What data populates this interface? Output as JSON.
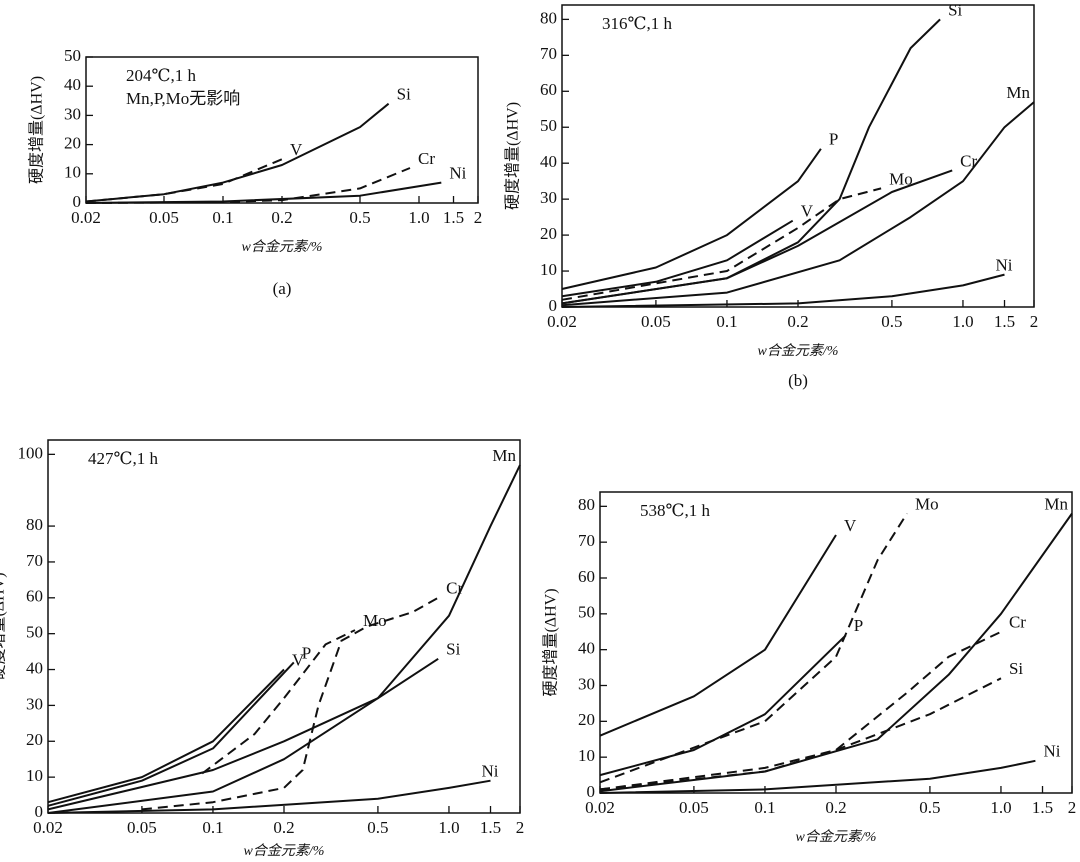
{
  "chart_data": [
    {
      "type": "line",
      "title": "204℃,1 h",
      "annotation": "Mn,P,Mo无影响",
      "panel_label": "(a)",
      "y_label": "硬度增量(ΔHV)",
      "x_label": "w合金元素/%",
      "xscale": "log",
      "xlim": [
        0.02,
        2
      ],
      "ylim": [
        0,
        50
      ],
      "xticks": [
        0.02,
        0.05,
        0.1,
        0.2,
        0.5,
        {
          "value": 1,
          "label": "1.0"
        },
        1.5,
        2
      ],
      "yticks": [
        0,
        10,
        20,
        30,
        40,
        50
      ],
      "series": [
        {
          "name": "Si",
          "color": "#111",
          "dashed": false,
          "x": [
            0.02,
            0.05,
            0.1,
            0.2,
            0.5,
            0.7
          ],
          "values": [
            0.5,
            3,
            7,
            13,
            26,
            34
          ]
        },
        {
          "name": "V",
          "color": "#111",
          "dashed": true,
          "x": [
            0.02,
            0.05,
            0.1,
            0.2
          ],
          "values": [
            0.5,
            3,
            6.5,
            15
          ]
        },
        {
          "name": "Cr",
          "color": "#111",
          "dashed": true,
          "x": [
            0.02,
            0.1,
            0.2,
            0.5,
            0.9
          ],
          "values": [
            0,
            0.3,
            1,
            5,
            12
          ]
        },
        {
          "name": "Ni",
          "color": "#111",
          "dashed": false,
          "x": [
            0.02,
            0.1,
            0.5,
            1.3
          ],
          "values": [
            0,
            0.5,
            2.5,
            7
          ]
        }
      ]
    },
    {
      "type": "line",
      "title": "316℃,1 h",
      "panel_label": "(b)",
      "y_label": "硬度增量(ΔHV)",
      "x_label": "w合金元素/%",
      "xscale": "log",
      "xlim": [
        0.02,
        2
      ],
      "ylim": [
        0,
        84
      ],
      "xticks": [
        0.02,
        0.05,
        0.1,
        0.2,
        0.5,
        {
          "value": 1,
          "label": "1.0"
        },
        1.5,
        2
      ],
      "yticks": [
        0,
        10,
        20,
        30,
        40,
        50,
        60,
        70,
        80
      ],
      "series": [
        {
          "name": "P",
          "color": "#111",
          "dashed": false,
          "x": [
            0.02,
            0.05,
            0.1,
            0.2,
            0.25
          ],
          "values": [
            5,
            11,
            20,
            35,
            44
          ]
        },
        {
          "name": "V",
          "color": "#111",
          "dashed": false,
          "x": [
            0.02,
            0.05,
            0.1,
            0.19
          ],
          "values": [
            3,
            7,
            13,
            24
          ]
        },
        {
          "name": "Mo",
          "color": "#111",
          "dashed": true,
          "x": [
            0.02,
            0.1,
            0.2,
            0.3,
            0.45
          ],
          "values": [
            2,
            10,
            22,
            30,
            33
          ]
        },
        {
          "name": "Cr",
          "color": "#111",
          "dashed": false,
          "x": [
            0.02,
            0.1,
            0.2,
            0.5,
            0.9
          ],
          "values": [
            1,
            8,
            17,
            32,
            38
          ]
        },
        {
          "name": "Si",
          "color": "#111",
          "dashed": false,
          "x": [
            0.02,
            0.1,
            0.2,
            0.3,
            0.4,
            0.6,
            0.8
          ],
          "values": [
            1,
            8,
            18,
            30,
            50,
            72,
            80
          ]
        },
        {
          "name": "Mn",
          "color": "#111",
          "dashed": false,
          "x": [
            0.02,
            0.1,
            0.3,
            0.6,
            1,
            1.5,
            2
          ],
          "values": [
            0.5,
            4,
            13,
            25,
            35,
            50,
            57
          ]
        },
        {
          "name": "Ni",
          "color": "#111",
          "dashed": false,
          "x": [
            0.02,
            0.2,
            0.5,
            1,
            1.5
          ],
          "values": [
            0,
            1,
            3,
            6,
            9
          ]
        }
      ]
    },
    {
      "type": "line",
      "title": "427℃,1 h",
      "y_label": "硬度增量(ΔHV)",
      "x_label": "w合金元素/%",
      "xscale": "log",
      "xlim": [
        0.02,
        2
      ],
      "ylim": [
        0,
        104
      ],
      "xticks": [
        0.02,
        0.05,
        0.1,
        0.2,
        0.5,
        {
          "value": 1,
          "label": "1.0"
        },
        1.5,
        2
      ],
      "yticks": [
        0,
        10,
        20,
        30,
        40,
        50,
        60,
        70,
        80,
        100
      ],
      "series": [
        {
          "name": "V",
          "color": "#111",
          "dashed": false,
          "x": [
            0.02,
            0.05,
            0.1,
            0.2
          ],
          "values": [
            3,
            10,
            20,
            40
          ]
        },
        {
          "name": "P",
          "color": "#111",
          "dashed": false,
          "x": [
            0.02,
            0.05,
            0.1,
            0.22
          ],
          "values": [
            2,
            9,
            18,
            42
          ]
        },
        {
          "name": "Mo",
          "color": "#111",
          "dashed": true,
          "x": [
            0.09,
            0.15,
            0.2,
            0.3,
            0.4
          ],
          "values": [
            11,
            22,
            32,
            47,
            51
          ]
        },
        {
          "name": "Cr",
          "color": "#111",
          "dashed": true,
          "x": [
            0.05,
            0.1,
            0.2,
            0.24,
            0.28,
            0.35,
            0.45,
            0.7,
            0.9
          ],
          "values": [
            1,
            3,
            7,
            12,
            30,
            48,
            52,
            56,
            60
          ]
        },
        {
          "name": "Si",
          "color": "#111",
          "dashed": false,
          "x": [
            0.02,
            0.1,
            0.2,
            0.5,
            0.9
          ],
          "values": [
            1,
            12,
            20,
            32,
            43
          ]
        },
        {
          "name": "Mn",
          "color": "#111",
          "dashed": false,
          "x": [
            0.02,
            0.1,
            0.2,
            0.5,
            1,
            1.5,
            2
          ],
          "values": [
            0,
            6,
            15,
            32,
            55,
            80,
            97
          ]
        },
        {
          "name": "Ni",
          "color": "#111",
          "dashed": false,
          "x": [
            0.02,
            0.1,
            0.5,
            1,
            1.5
          ],
          "values": [
            0,
            1,
            4,
            7,
            9
          ]
        }
      ]
    },
    {
      "type": "line",
      "title": "538℃,1 h",
      "y_label": "硬度增量(ΔHV)",
      "x_label": "w合金元素/%",
      "xscale": "log",
      "xlim": [
        0.02,
        2
      ],
      "ylim": [
        0,
        84
      ],
      "xticks": [
        0.02,
        0.05,
        0.1,
        0.2,
        0.5,
        {
          "value": 1,
          "label": "1.0"
        },
        1.5,
        2
      ],
      "yticks": [
        0,
        10,
        20,
        30,
        40,
        50,
        60,
        70,
        80
      ],
      "series": [
        {
          "name": "V",
          "color": "#111",
          "dashed": false,
          "x": [
            0.02,
            0.05,
            0.1,
            0.2
          ],
          "values": [
            16,
            27,
            40,
            72
          ]
        },
        {
          "name": "P",
          "color": "#111",
          "dashed": false,
          "x": [
            0.02,
            0.05,
            0.1,
            0.22
          ],
          "values": [
            5,
            12,
            22,
            44
          ]
        },
        {
          "name": "Mo",
          "color": "#111",
          "dashed": true,
          "x": [
            0.02,
            0.1,
            0.2,
            0.3,
            0.4
          ],
          "values": [
            3,
            20,
            38,
            65,
            78
          ]
        },
        {
          "name": "Cr",
          "color": "#111",
          "dashed": true,
          "x": [
            0.02,
            0.1,
            0.2,
            0.4,
            0.6,
            1
          ],
          "values": [
            1,
            7,
            12,
            28,
            38,
            45
          ]
        },
        {
          "name": "Si",
          "color": "#111",
          "dashed": true,
          "x": [
            0.02,
            0.1,
            0.2,
            0.5,
            1
          ],
          "values": [
            1,
            6,
            12,
            22,
            32
          ]
        },
        {
          "name": "Mn",
          "color": "#111",
          "dashed": false,
          "x": [
            0.02,
            0.1,
            0.3,
            0.6,
            1,
            2
          ],
          "values": [
            0.5,
            6,
            15,
            33,
            50,
            78
          ]
        },
        {
          "name": "Ni",
          "color": "#111",
          "dashed": false,
          "x": [
            0.02,
            0.1,
            0.5,
            1,
            1.4
          ],
          "values": [
            0,
            1,
            4,
            7,
            9
          ]
        }
      ]
    }
  ]
}
